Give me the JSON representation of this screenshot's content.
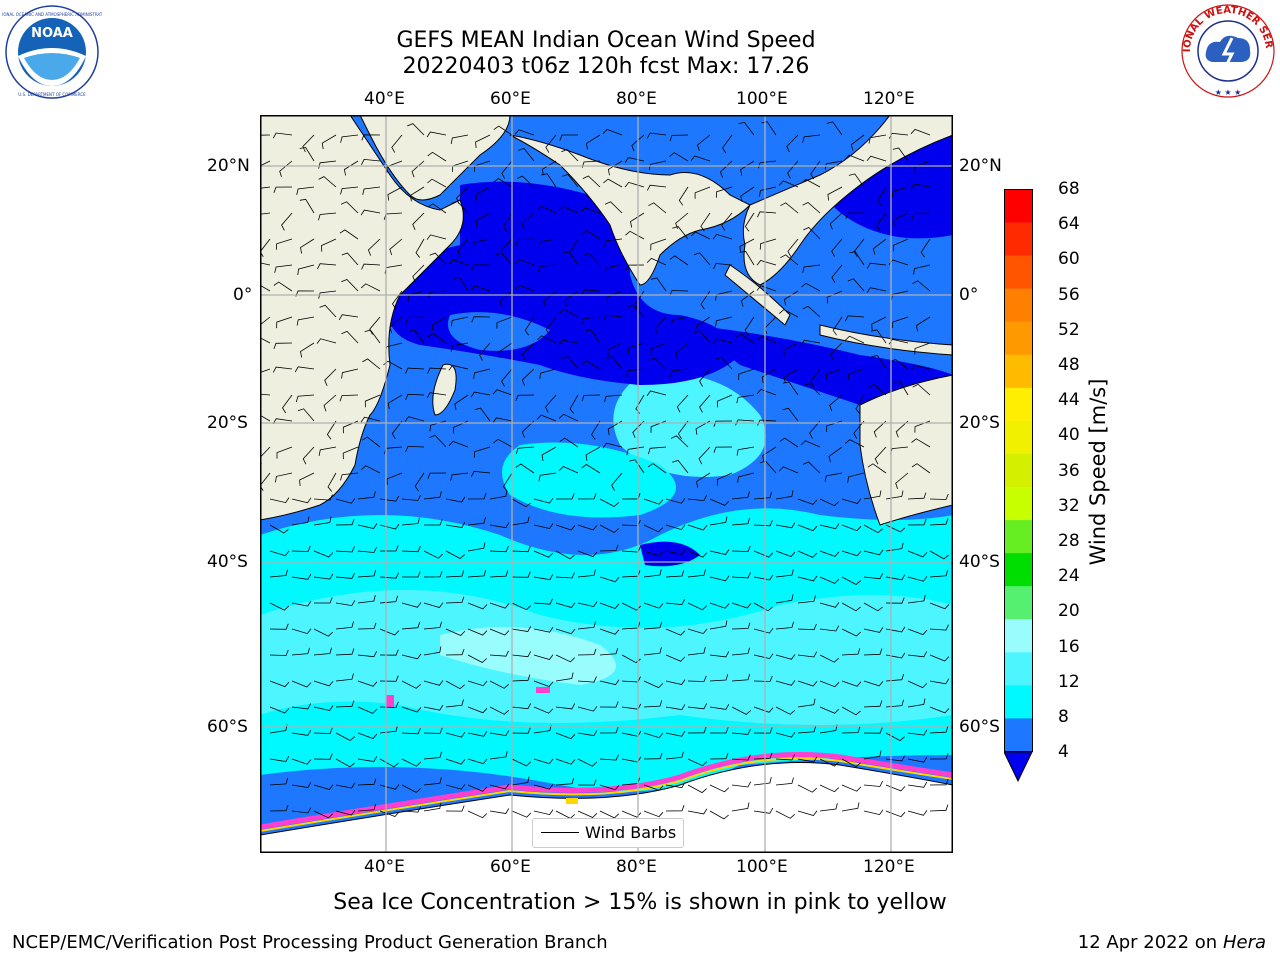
{
  "header": {
    "title_line1": "GEFS MEAN Indian Ocean Wind Speed",
    "title_line2": "20220403 t06z 120h fcst   Max: 17.26"
  },
  "logos": {
    "noaa_text": "NOAA",
    "noaa_ring": "NATIONAL OCEANIC AND ATMOSPHERIC ADMINISTRATION · U.S. DEPARTMENT OF COMMERCE",
    "nws_ring": "NATIONAL WEATHER SERVICE"
  },
  "map": {
    "lon_ticks": [
      "40°E",
      "60°E",
      "80°E",
      "100°E",
      "120°E"
    ],
    "lat_ticks_left": [
      "20°N",
      "0°",
      "20°S",
      "40°S",
      "60°S"
    ],
    "lat_ticks_right": [
      "20°N",
      "0°",
      "20°S",
      "40°S",
      "60°S"
    ],
    "legend_label": "Wind Barbs",
    "colors": {
      "land": "#efefdf",
      "calm": "#0000ee",
      "4_8": "#1e78ff",
      "8_12": "#00f8ff",
      "12_16": "#4cf5ff",
      "16_20": "#99fdfe",
      "sea_ice_low": "#ff3fd0",
      "sea_ice_high": "#ffd700",
      "antarctica": "#ffffff"
    }
  },
  "colorbar": {
    "title": "Wind Speed [m/s]",
    "labels": [
      "68",
      "64",
      "60",
      "56",
      "52",
      "48",
      "44",
      "40",
      "36",
      "32",
      "28",
      "24",
      "20",
      "16",
      "12",
      "8",
      "4"
    ],
    "colors_top_down": [
      "#ff0000",
      "#ff2a00",
      "#ff5500",
      "#ff8000",
      "#ff9900",
      "#ffbb00",
      "#ffee00",
      "#f0f000",
      "#d4f000",
      "#c8ff00",
      "#66ee22",
      "#00dd00",
      "#55f070",
      "#99fdfe",
      "#4cf5ff",
      "#00f8ff",
      "#1e78ff"
    ],
    "below_color": "#0000ee"
  },
  "caption": "Sea Ice Concentration > 15% is shown in pink to yellow",
  "footer": {
    "left": "NCEP/EMC/Verification Post Processing Product Generation Branch",
    "right_date": "12 Apr 2022 on ",
    "right_machine": "Hera"
  }
}
